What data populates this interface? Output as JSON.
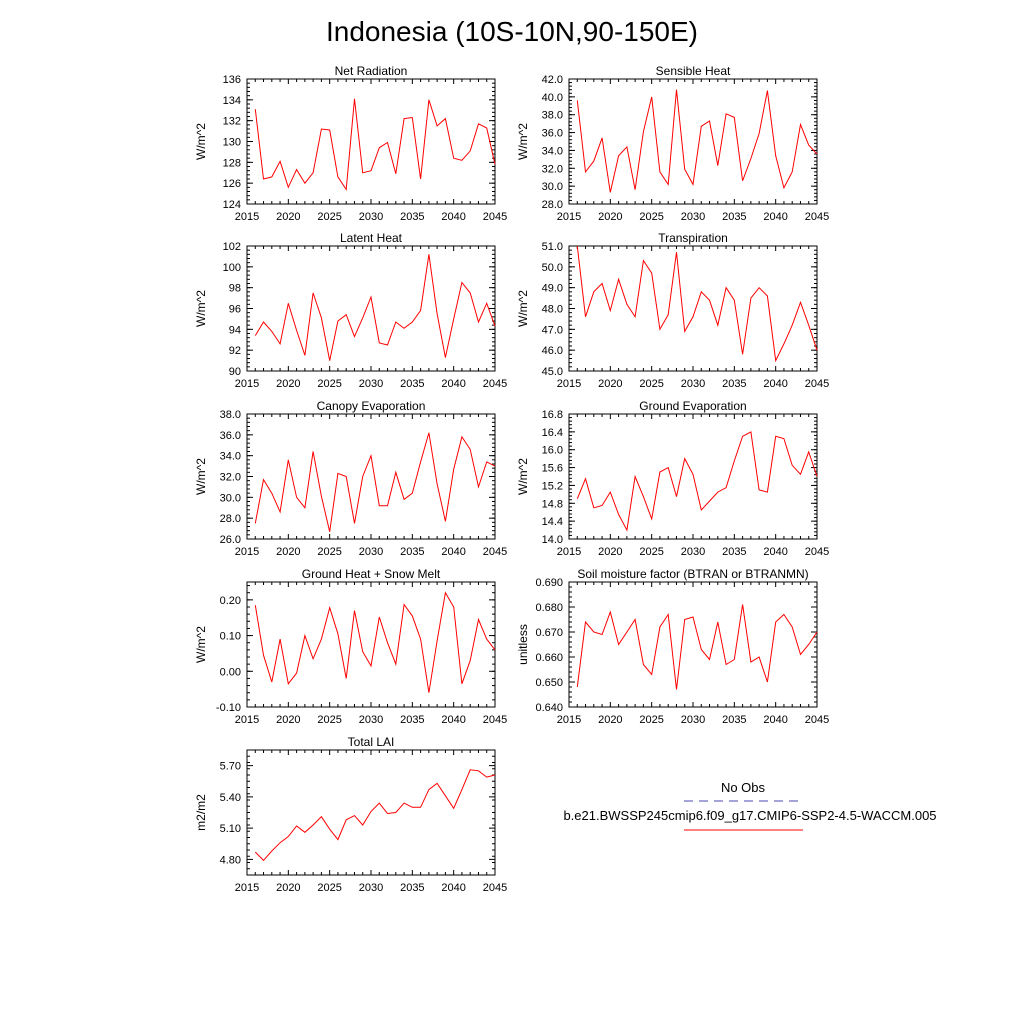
{
  "page": {
    "title": "Indonesia (10S-10N,90-150E)"
  },
  "colors": {
    "model_line": "#ff0000",
    "obs_line": "#4a4ab5",
    "axis": "#000000"
  },
  "legend": {
    "obs_label": "No Obs",
    "model_label": "b.e21.BWSSP245cmip6.f09_g17.CMIP6-SSP2-4.5-WACCM.005"
  },
  "chart_data": [
    {
      "type": "line",
      "title": "Net Radiation",
      "ylabel": "W/m^2",
      "xlabel": "",
      "xlim": [
        2015,
        2045
      ],
      "xticks": [
        2015,
        2020,
        2025,
        2030,
        2035,
        2040,
        2045
      ],
      "ylim": [
        124,
        136
      ],
      "yticks": [
        "124",
        "126",
        "128",
        "130",
        "132",
        "134",
        "136"
      ],
      "x": [
        2016,
        2017,
        2018,
        2019,
        2020,
        2021,
        2022,
        2023,
        2024,
        2025,
        2026,
        2027,
        2028,
        2029,
        2030,
        2031,
        2032,
        2033,
        2034,
        2035,
        2036,
        2037,
        2038,
        2039,
        2040,
        2041,
        2042,
        2043,
        2044,
        2045
      ],
      "values": [
        133.1,
        126.4,
        126.6,
        128.1,
        125.6,
        127.3,
        126.0,
        127.0,
        131.2,
        131.1,
        126.6,
        125.4,
        134.1,
        127.0,
        127.2,
        129.4,
        129.9,
        126.9,
        132.2,
        132.3,
        126.4,
        134.0,
        131.5,
        132.2,
        128.4,
        128.2,
        129.1,
        131.7,
        131.3,
        127.8
      ]
    },
    {
      "type": "line",
      "title": "Sensible Heat",
      "ylabel": "W/m^2",
      "xlabel": "",
      "xlim": [
        2015,
        2045
      ],
      "xticks": [
        2015,
        2020,
        2025,
        2030,
        2035,
        2040,
        2045
      ],
      "ylim": [
        28,
        42
      ],
      "yticks": [
        "28.0",
        "30.0",
        "32.0",
        "34.0",
        "36.0",
        "38.0",
        "40.0",
        "42.0"
      ],
      "x": [
        2016,
        2017,
        2018,
        2019,
        2020,
        2021,
        2022,
        2023,
        2024,
        2025,
        2026,
        2027,
        2028,
        2029,
        2030,
        2031,
        2032,
        2033,
        2034,
        2035,
        2036,
        2037,
        2038,
        2039,
        2040,
        2041,
        2042,
        2043,
        2044,
        2045
      ],
      "values": [
        39.6,
        31.6,
        32.8,
        35.4,
        29.3,
        33.4,
        34.4,
        29.6,
        36.1,
        40.0,
        31.6,
        30.2,
        40.8,
        31.9,
        30.2,
        36.7,
        37.3,
        32.3,
        38.1,
        37.7,
        30.6,
        33.1,
        35.9,
        40.7,
        33.4,
        29.8,
        31.6,
        36.9,
        34.6,
        33.6
      ]
    },
    {
      "type": "line",
      "title": "Latent Heat",
      "ylabel": "W/m^2",
      "xlabel": "",
      "xlim": [
        2015,
        2045
      ],
      "xticks": [
        2015,
        2020,
        2025,
        2030,
        2035,
        2040,
        2045
      ],
      "ylim": [
        90,
        102
      ],
      "yticks": [
        "90",
        "92",
        "94",
        "96",
        "98",
        "100",
        "102"
      ],
      "x": [
        2016,
        2017,
        2018,
        2019,
        2020,
        2021,
        2022,
        2023,
        2024,
        2025,
        2026,
        2027,
        2028,
        2029,
        2030,
        2031,
        2032,
        2033,
        2034,
        2035,
        2036,
        2037,
        2038,
        2039,
        2040,
        2041,
        2042,
        2043,
        2044,
        2045
      ],
      "values": [
        93.4,
        94.7,
        93.8,
        92.6,
        96.5,
        93.9,
        91.5,
        97.5,
        95.1,
        91.0,
        94.8,
        95.4,
        93.3,
        95.1,
        97.1,
        92.7,
        92.5,
        94.7,
        94.1,
        94.7,
        95.8,
        101.2,
        95.5,
        91.3,
        95.0,
        98.5,
        97.5,
        94.7,
        96.5,
        94.3
      ]
    },
    {
      "type": "line",
      "title": "Transpiration",
      "ylabel": "W/m^2",
      "xlabel": "",
      "xlim": [
        2015,
        2045
      ],
      "xticks": [
        2015,
        2020,
        2025,
        2030,
        2035,
        2040,
        2045
      ],
      "ylim": [
        45,
        51
      ],
      "yticks": [
        "45.0",
        "46.0",
        "47.0",
        "48.0",
        "49.0",
        "50.0",
        "51.0"
      ],
      "x": [
        2016,
        2017,
        2018,
        2019,
        2020,
        2021,
        2022,
        2023,
        2024,
        2025,
        2026,
        2027,
        2028,
        2029,
        2030,
        2031,
        2032,
        2033,
        2034,
        2035,
        2036,
        2037,
        2038,
        2039,
        2040,
        2041,
        2042,
        2043,
        2044,
        2045
      ],
      "values": [
        51.0,
        47.6,
        48.8,
        49.2,
        47.9,
        49.4,
        48.2,
        47.6,
        50.3,
        49.7,
        47.0,
        47.7,
        50.7,
        46.9,
        47.6,
        48.8,
        48.4,
        47.2,
        49.0,
        48.4,
        45.8,
        48.5,
        49.0,
        48.6,
        45.5,
        46.3,
        47.2,
        48.3,
        47.2,
        46.0
      ]
    },
    {
      "type": "line",
      "title": "Canopy Evaporation",
      "ylabel": "W/m^2",
      "xlabel": "",
      "xlim": [
        2015,
        2045
      ],
      "xticks": [
        2015,
        2020,
        2025,
        2030,
        2035,
        2040,
        2045
      ],
      "ylim": [
        26,
        38
      ],
      "yticks": [
        "26.0",
        "28.0",
        "30.0",
        "32.0",
        "34.0",
        "36.0",
        "38.0"
      ],
      "x": [
        2016,
        2017,
        2018,
        2019,
        2020,
        2021,
        2022,
        2023,
        2024,
        2025,
        2026,
        2027,
        2028,
        2029,
        2030,
        2031,
        2032,
        2033,
        2034,
        2035,
        2036,
        2037,
        2038,
        2039,
        2040,
        2041,
        2042,
        2043,
        2044,
        2045
      ],
      "values": [
        27.5,
        31.7,
        30.4,
        28.6,
        33.6,
        30.0,
        29.0,
        34.4,
        30.1,
        26.7,
        32.3,
        32.0,
        27.5,
        32.0,
        34.0,
        29.2,
        29.2,
        32.4,
        29.8,
        30.4,
        33.4,
        36.2,
        31.3,
        27.7,
        32.7,
        35.8,
        34.6,
        31.0,
        33.4,
        33.0
      ]
    },
    {
      "type": "line",
      "title": "Ground Evaporation",
      "ylabel": "W/m^2",
      "xlabel": "",
      "xlim": [
        2015,
        2045
      ],
      "xticks": [
        2015,
        2020,
        2025,
        2030,
        2035,
        2040,
        2045
      ],
      "ylim": [
        14.0,
        16.8
      ],
      "yticks": [
        "14.0",
        "14.4",
        "14.8",
        "15.2",
        "15.6",
        "16.0",
        "16.4",
        "16.8"
      ],
      "x": [
        2016,
        2017,
        2018,
        2019,
        2020,
        2021,
        2022,
        2023,
        2024,
        2025,
        2026,
        2027,
        2028,
        2029,
        2030,
        2031,
        2032,
        2033,
        2034,
        2035,
        2036,
        2037,
        2038,
        2039,
        2040,
        2041,
        2042,
        2043,
        2044,
        2045
      ],
      "values": [
        14.9,
        15.35,
        14.7,
        14.75,
        15.05,
        14.55,
        14.2,
        15.4,
        14.95,
        14.45,
        15.5,
        15.6,
        14.95,
        15.8,
        15.45,
        14.65,
        14.85,
        15.05,
        15.15,
        15.75,
        16.3,
        16.4,
        15.1,
        15.05,
        16.3,
        16.25,
        15.65,
        15.45,
        15.95,
        15.4
      ]
    },
    {
      "type": "line",
      "title": "Ground Heat + Snow Melt",
      "ylabel": "W/m^2",
      "xlabel": "",
      "xlim": [
        2015,
        2045
      ],
      "xticks": [
        2015,
        2020,
        2025,
        2030,
        2035,
        2040,
        2045
      ],
      "ylim": [
        -0.1,
        0.25
      ],
      "yticks": [
        "-0.10",
        "0.00",
        "0.10",
        "0.20"
      ],
      "ytick_values": [
        -0.1,
        0.0,
        0.1,
        0.2
      ],
      "x": [
        2016,
        2017,
        2018,
        2019,
        2020,
        2021,
        2022,
        2023,
        2024,
        2025,
        2026,
        2027,
        2028,
        2029,
        2030,
        2031,
        2032,
        2033,
        2034,
        2035,
        2036,
        2037,
        2038,
        2039,
        2040,
        2041,
        2042,
        2043,
        2044,
        2045
      ],
      "values": [
        0.185,
        0.045,
        -0.03,
        0.09,
        -0.035,
        -0.005,
        0.1,
        0.035,
        0.09,
        0.178,
        0.105,
        -0.02,
        0.17,
        0.055,
        0.015,
        0.152,
        0.08,
        0.02,
        0.187,
        0.155,
        0.09,
        -0.06,
        0.085,
        0.22,
        0.18,
        -0.035,
        0.03,
        0.145,
        0.09,
        0.06
      ]
    },
    {
      "type": "line",
      "title": "Soil moisture factor (BTRAN or BTRANMN)",
      "ylabel": "unitless",
      "xlabel": "",
      "xlim": [
        2015,
        2045
      ],
      "xticks": [
        2015,
        2020,
        2025,
        2030,
        2035,
        2040,
        2045
      ],
      "ylim": [
        0.64,
        0.69
      ],
      "yticks": [
        "0.640",
        "0.650",
        "0.660",
        "0.670",
        "0.680",
        "0.690"
      ],
      "x": [
        2016,
        2017,
        2018,
        2019,
        2020,
        2021,
        2022,
        2023,
        2024,
        2025,
        2026,
        2027,
        2028,
        2029,
        2030,
        2031,
        2032,
        2033,
        2034,
        2035,
        2036,
        2037,
        2038,
        2039,
        2040,
        2041,
        2042,
        2043,
        2044,
        2045
      ],
      "values": [
        0.648,
        0.674,
        0.67,
        0.669,
        0.678,
        0.665,
        0.67,
        0.675,
        0.657,
        0.653,
        0.672,
        0.677,
        0.647,
        0.675,
        0.676,
        0.663,
        0.659,
        0.674,
        0.657,
        0.659,
        0.681,
        0.658,
        0.66,
        0.65,
        0.674,
        0.677,
        0.672,
        0.661,
        0.665,
        0.67
      ]
    },
    {
      "type": "line",
      "title": "Total LAI",
      "ylabel": "m2/m2",
      "xlabel": "",
      "xlim": [
        2015,
        2045
      ],
      "xticks": [
        2015,
        2020,
        2025,
        2030,
        2035,
        2040,
        2045
      ],
      "ylim": [
        4.65,
        5.85
      ],
      "yticks": [
        "4.80",
        "5.10",
        "5.40",
        "5.70"
      ],
      "ytick_values": [
        4.8,
        5.1,
        5.4,
        5.7
      ],
      "x": [
        2016,
        2017,
        2018,
        2019,
        2020,
        2021,
        2022,
        2023,
        2024,
        2025,
        2026,
        2027,
        2028,
        2029,
        2030,
        2031,
        2032,
        2033,
        2034,
        2035,
        2036,
        2037,
        2038,
        2039,
        2040,
        2041,
        2042,
        2043,
        2044,
        2045
      ],
      "values": [
        4.87,
        4.79,
        4.88,
        4.96,
        5.02,
        5.12,
        5.06,
        5.13,
        5.21,
        5.09,
        4.99,
        5.18,
        5.22,
        5.13,
        5.26,
        5.34,
        5.24,
        5.25,
        5.34,
        5.3,
        5.3,
        5.47,
        5.53,
        5.41,
        5.29,
        5.47,
        5.66,
        5.65,
        5.59,
        5.61
      ]
    }
  ]
}
